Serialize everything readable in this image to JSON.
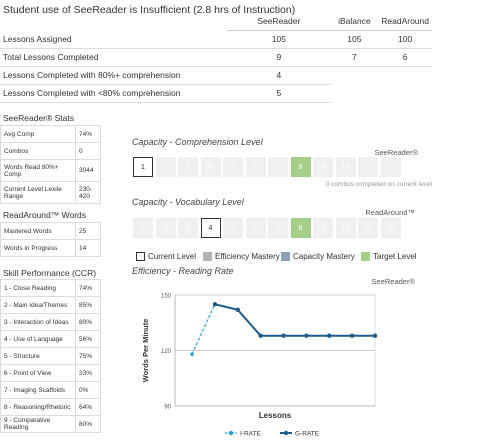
{
  "title": "Student use of SeeReader is Insufficient (2.8 hrs of Instruction)",
  "summary_table": {
    "columns": [
      "SeeReader",
      "iBalance",
      "ReadAround"
    ],
    "rows": [
      {
        "label": "Lessons Assigned",
        "values": [
          "105",
          "105",
          "100"
        ]
      },
      {
        "label": "Total Lessons Completed",
        "values": [
          "9",
          "7",
          "6"
        ]
      },
      {
        "label": "Lessons Completed with 80%+ comprehension",
        "values": [
          "4",
          "",
          ""
        ]
      },
      {
        "label": "Lessons Completed with <80% comprehension",
        "values": [
          "5",
          "",
          ""
        ]
      }
    ]
  },
  "seereader_stats": {
    "title": "SeeReader® Stats",
    "rows": [
      {
        "label": "Avg Comp",
        "value": "74%"
      },
      {
        "label": "Combos",
        "value": "0"
      },
      {
        "label": "Words Read 80%+ Comp",
        "value": "3044"
      },
      {
        "label": "Current Level Lexile Range",
        "value": "230-420"
      }
    ]
  },
  "readaround_words": {
    "title": "ReadAround™ Words",
    "rows": [
      {
        "label": "Mastered Words",
        "value": "25"
      },
      {
        "label": "Words in Progress",
        "value": "14"
      }
    ]
  },
  "skill_performance": {
    "title": "Skill Performance (CCR)",
    "rows": [
      {
        "label": "1 - Close Reading",
        "value": "74%"
      },
      {
        "label": "2 - Main Idea/Themes",
        "value": "85%"
      },
      {
        "label": "3 - Interaction of Ideas",
        "value": "80%"
      },
      {
        "label": "4 - Use of Language",
        "value": "56%"
      },
      {
        "label": "5 - Structure",
        "value": "75%"
      },
      {
        "label": "6 - Point of View",
        "value": "33%"
      },
      {
        "label": "7 - Imaging Scaffolds",
        "value": "0%"
      },
      {
        "label": "8 - Reasoning/Rhetoric",
        "value": "64%"
      },
      {
        "label": "9 - Comparative Reading",
        "value": "80%"
      }
    ]
  },
  "comprehension": {
    "title": "Capacity - Comprehension Level",
    "brand": "SeeReader®",
    "levels": [
      "1",
      "2",
      "3",
      "4",
      "5",
      "6",
      "7",
      "8",
      "9",
      "10",
      "11",
      "12"
    ],
    "current_level": "1",
    "target_level": "8",
    "note": "0 combos completed on current level"
  },
  "vocabulary": {
    "title": "Capacity - Vocabulary Level",
    "brand": "ReadAround™",
    "levels": [
      "1",
      "2",
      "3",
      "4",
      "5",
      "6",
      "7",
      "8",
      "9",
      "10",
      "11",
      "12"
    ],
    "current_level": "4",
    "target_level": "8"
  },
  "legend": {
    "current": "Current Level",
    "efficiency": "Efficiency Mastery",
    "capacity": "Capacity Mastery",
    "target": "Target Level",
    "colors": {
      "efficiency": "#b3b3b3",
      "capacity": "#8fa3b8",
      "target": "#a6cf8a"
    }
  },
  "efficiency": {
    "title": "Efficiency - Reading Rate",
    "brand": "SeeReader®"
  },
  "chart_data": {
    "type": "line",
    "xlabel": "Lessons",
    "ylabel": "Words Per Minute",
    "ylim": [
      90,
      150
    ],
    "yticks": [
      90,
      120,
      150
    ],
    "x": [
      1,
      2,
      3,
      4,
      5,
      6,
      7,
      8,
      9
    ],
    "series": [
      {
        "name": "I-RATE",
        "color": "#2aa3d6",
        "style": "dashed",
        "x": [
          1,
          2,
          3
        ],
        "values": [
          118,
          145,
          142
        ]
      },
      {
        "name": "G-RATE",
        "color": "#1f5c8a",
        "style": "solid",
        "x": [
          2,
          3,
          4,
          5,
          6,
          7,
          8,
          9
        ],
        "values": [
          145,
          142,
          128,
          128,
          128,
          128,
          128,
          128
        ]
      }
    ],
    "grid": true,
    "legend_position": "bottom-center"
  }
}
